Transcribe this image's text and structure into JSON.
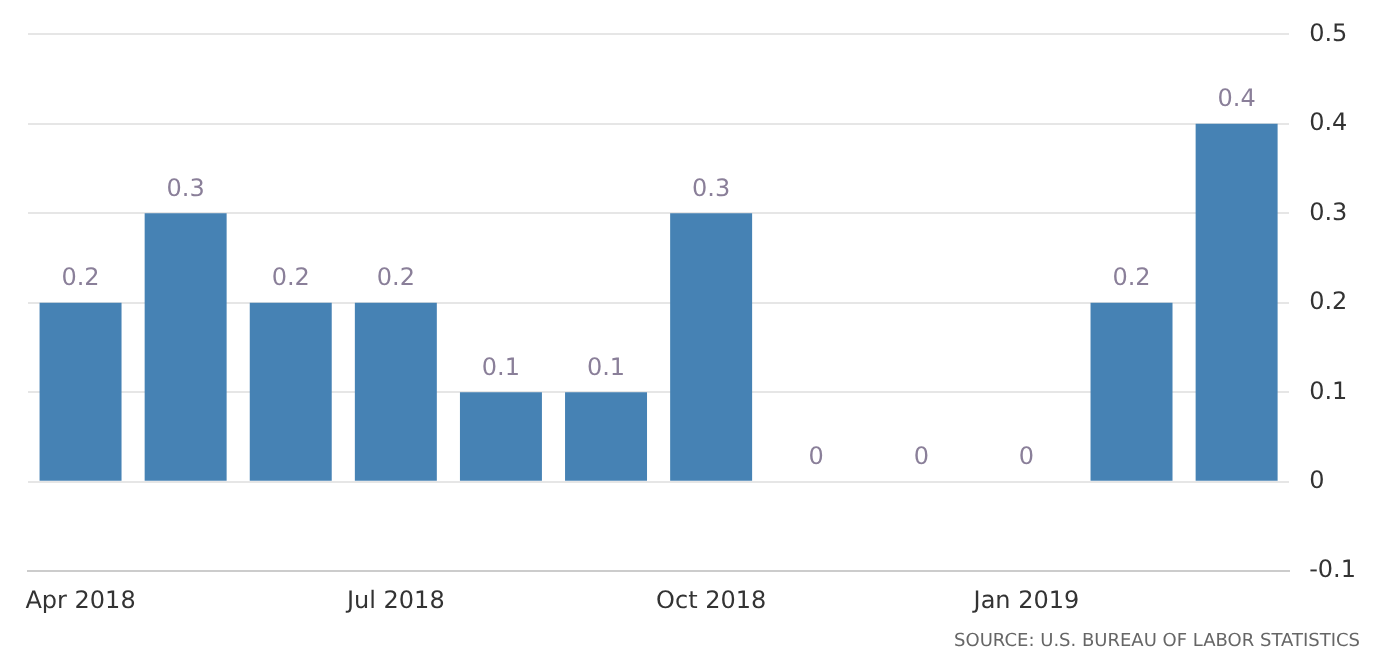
{
  "chart_data": {
    "type": "bar",
    "categories": [
      "Apr 2018",
      null,
      null,
      "Jul 2018",
      null,
      null,
      "Oct 2018",
      null,
      null,
      "Jan 2019",
      null,
      null
    ],
    "values": [
      0.2,
      0.3,
      0.2,
      0.2,
      0.1,
      0.1,
      0.3,
      0,
      0,
      0,
      0.2,
      0.4
    ],
    "color": "#4682b4",
    "ylim": [
      -0.1,
      0.5
    ],
    "yticks": [
      -0.1,
      0,
      0.1,
      0.2,
      0.3,
      0.4,
      0.5
    ],
    "grid": "y",
    "data_labels": true,
    "annotations": [
      "SOURCE: U.S. BUREAU OF LABOR STATISTICS"
    ]
  }
}
